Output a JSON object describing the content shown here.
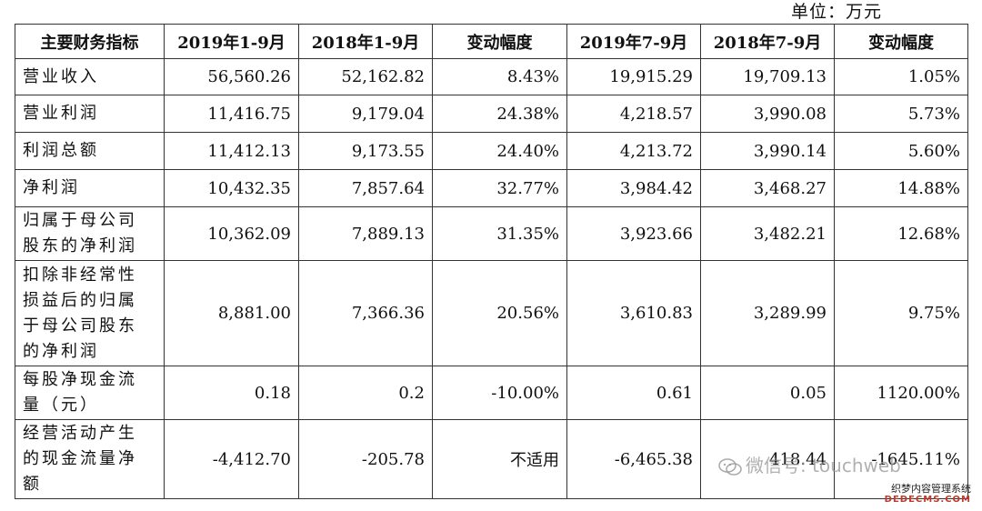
{
  "unit_label": "单位：万元",
  "headers": [
    "主要财务指标",
    "2019年1-9月",
    "2018年1-9月",
    "变动幅度",
    "2019年7-9月",
    "2018年7-9月",
    "变动幅度"
  ],
  "rows": [
    {
      "label": "营业收入",
      "cells": [
        "56,560.26",
        "52,162.82",
        "8.43%",
        "19,915.29",
        "19,709.13",
        "1.05%"
      ]
    },
    {
      "label": "营业利润",
      "cells": [
        "11,416.75",
        "9,179.04",
        "24.38%",
        "4,218.57",
        "3,990.08",
        "5.73%"
      ]
    },
    {
      "label": "利润总额",
      "cells": [
        "11,412.13",
        "9,173.55",
        "24.40%",
        "4,213.72",
        "3,990.14",
        "5.60%"
      ]
    },
    {
      "label": "净利润",
      "cells": [
        "10,432.35",
        "7,857.64",
        "32.77%",
        "3,984.42",
        "3,468.27",
        "14.88%"
      ]
    },
    {
      "label": "归属于母公司\n股东的净利润",
      "cells": [
        "10,362.09",
        "7,889.13",
        "31.35%",
        "3,923.66",
        "3,482.21",
        "12.68%"
      ]
    },
    {
      "label": "扣除非经常性\n损益后的归属\n于母公司股东\n的净利润",
      "cells": [
        "8,881.00",
        "7,366.36",
        "20.56%",
        "3,610.83",
        "3,289.99",
        "9.75%"
      ]
    },
    {
      "label": "每股净现金流\n量（元）",
      "cells": [
        "0.18",
        "0.2",
        "-10.00%",
        "0.61",
        "0.05",
        "1120.00%"
      ]
    },
    {
      "label": "经营活动产生\n的现金流量净\n额",
      "cells": [
        "-4,412.70",
        "-205.78",
        "不适用",
        "-6,465.38",
        "418.44",
        "-1645.11%"
      ]
    }
  ],
  "watermark": {
    "text": "微信号: touchweb",
    "icon": "wechat-icon"
  },
  "site_mark": {
    "cn": "织梦内容管理系统",
    "en": "DEDECMS.COM"
  }
}
